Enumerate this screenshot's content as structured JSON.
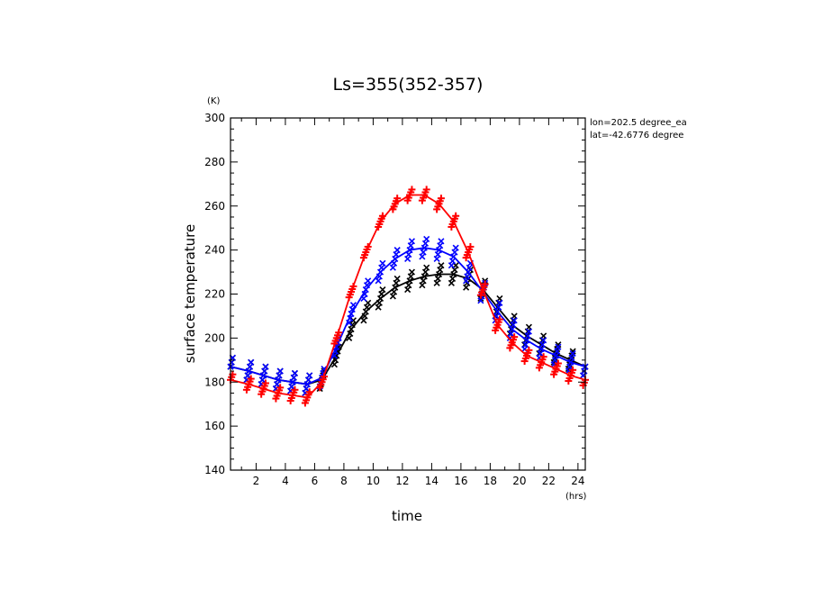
{
  "chart_data": {
    "type": "line",
    "title": "Ls=355(352-357)",
    "xlabel": "time",
    "ylabel": "surface temperature",
    "x_unit": "(hrs)",
    "y_unit": "(K)",
    "xlim": [
      0.25,
      24.5
    ],
    "ylim": [
      140,
      300
    ],
    "x_ticks": [
      2,
      4,
      6,
      8,
      10,
      12,
      14,
      16,
      18,
      20,
      22,
      24
    ],
    "y_ticks": [
      140,
      160,
      180,
      200,
      220,
      240,
      260,
      280,
      300
    ],
    "grid": false,
    "legend": "none",
    "annotations": [
      "lon=202.5 degree_ea",
      "lat=-42.6776 degree"
    ],
    "x": [
      0.25,
      1.5,
      2.5,
      3.5,
      4.5,
      5.5,
      6.5,
      7.5,
      8.5,
      9.5,
      10.5,
      11.5,
      12.5,
      13.5,
      14.5,
      15.5,
      16.5,
      17.5,
      18.5,
      19.5,
      20.5,
      21.5,
      22.5,
      23.5,
      24.5
    ],
    "series": [
      {
        "color": "#ff0000",
        "marker": "plus",
        "values": [
          181,
          179,
          177,
          175,
          174,
          173,
          180,
          200,
          221,
          239,
          253,
          261,
          265,
          265,
          261,
          253,
          239,
          222,
          206,
          198,
          192,
          189,
          186,
          183,
          181
        ],
        "spread": 2.5
      },
      {
        "color": "#0000ff",
        "marker": "x",
        "values": [
          187,
          185,
          183,
          181,
          180,
          179,
          182,
          196,
          211,
          222,
          230,
          236,
          240,
          241,
          240,
          237,
          230,
          221,
          212,
          204,
          199,
          195,
          192,
          189,
          187
        ],
        "spread": 4
      },
      {
        "color": "#000000",
        "marker": "x",
        "values": [
          187,
          185,
          183,
          181,
          180,
          179,
          181,
          192,
          204,
          212,
          218,
          223,
          226,
          228,
          229,
          229,
          227,
          222,
          214,
          206,
          201,
          197,
          193,
          190,
          187
        ],
        "spread": 4
      }
    ]
  }
}
